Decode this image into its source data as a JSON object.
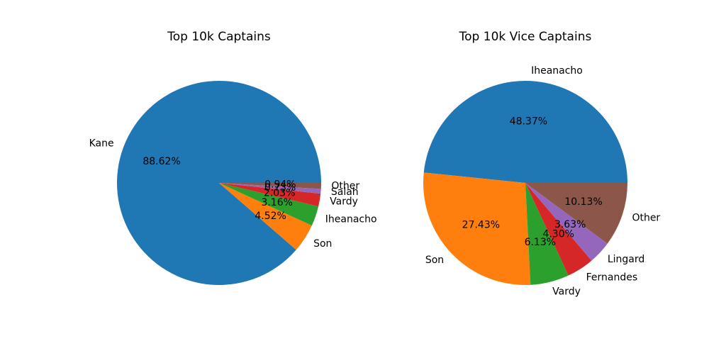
{
  "chart_data": [
    {
      "type": "pie",
      "title": "Top 10k Captains",
      "start_angle": 0,
      "direction": "counterclockwise",
      "slices": [
        {
          "label": "Kane",
          "value": 88.62,
          "pct_text": "88.62%",
          "color": "#1f77b4"
        },
        {
          "label": "Son",
          "value": 4.52,
          "pct_text": "4.52%",
          "color": "#ff7f0e"
        },
        {
          "label": "Iheanacho",
          "value": 3.16,
          "pct_text": "3.16%",
          "color": "#2ca02c"
        },
        {
          "label": "Vardy",
          "value": 2.03,
          "pct_text": "2.03%",
          "color": "#d62728"
        },
        {
          "label": "Salah",
          "value": 0.73,
          "pct_text": "0.73%",
          "color": "#9467bd"
        },
        {
          "label": "Other",
          "value": 0.94,
          "pct_text": "0.94%",
          "color": "#8c564b"
        }
      ]
    },
    {
      "type": "pie",
      "title": "Top 10k Vice Captains",
      "start_angle": 0,
      "direction": "counterclockwise",
      "slices": [
        {
          "label": "Iheanacho",
          "value": 48.37,
          "pct_text": "48.37%",
          "color": "#1f77b4"
        },
        {
          "label": "Son",
          "value": 27.43,
          "pct_text": "27.43%",
          "color": "#ff7f0e"
        },
        {
          "label": "Vardy",
          "value": 6.13,
          "pct_text": "6.13%",
          "color": "#2ca02c"
        },
        {
          "label": "Fernandes",
          "value": 4.3,
          "pct_text": "4.30%",
          "color": "#d62728"
        },
        {
          "label": "Lingard",
          "value": 3.63,
          "pct_text": "3.63%",
          "color": "#9467bd"
        },
        {
          "label": "Other",
          "value": 10.13,
          "pct_text": "10.13%",
          "color": "#8c564b"
        }
      ]
    }
  ]
}
